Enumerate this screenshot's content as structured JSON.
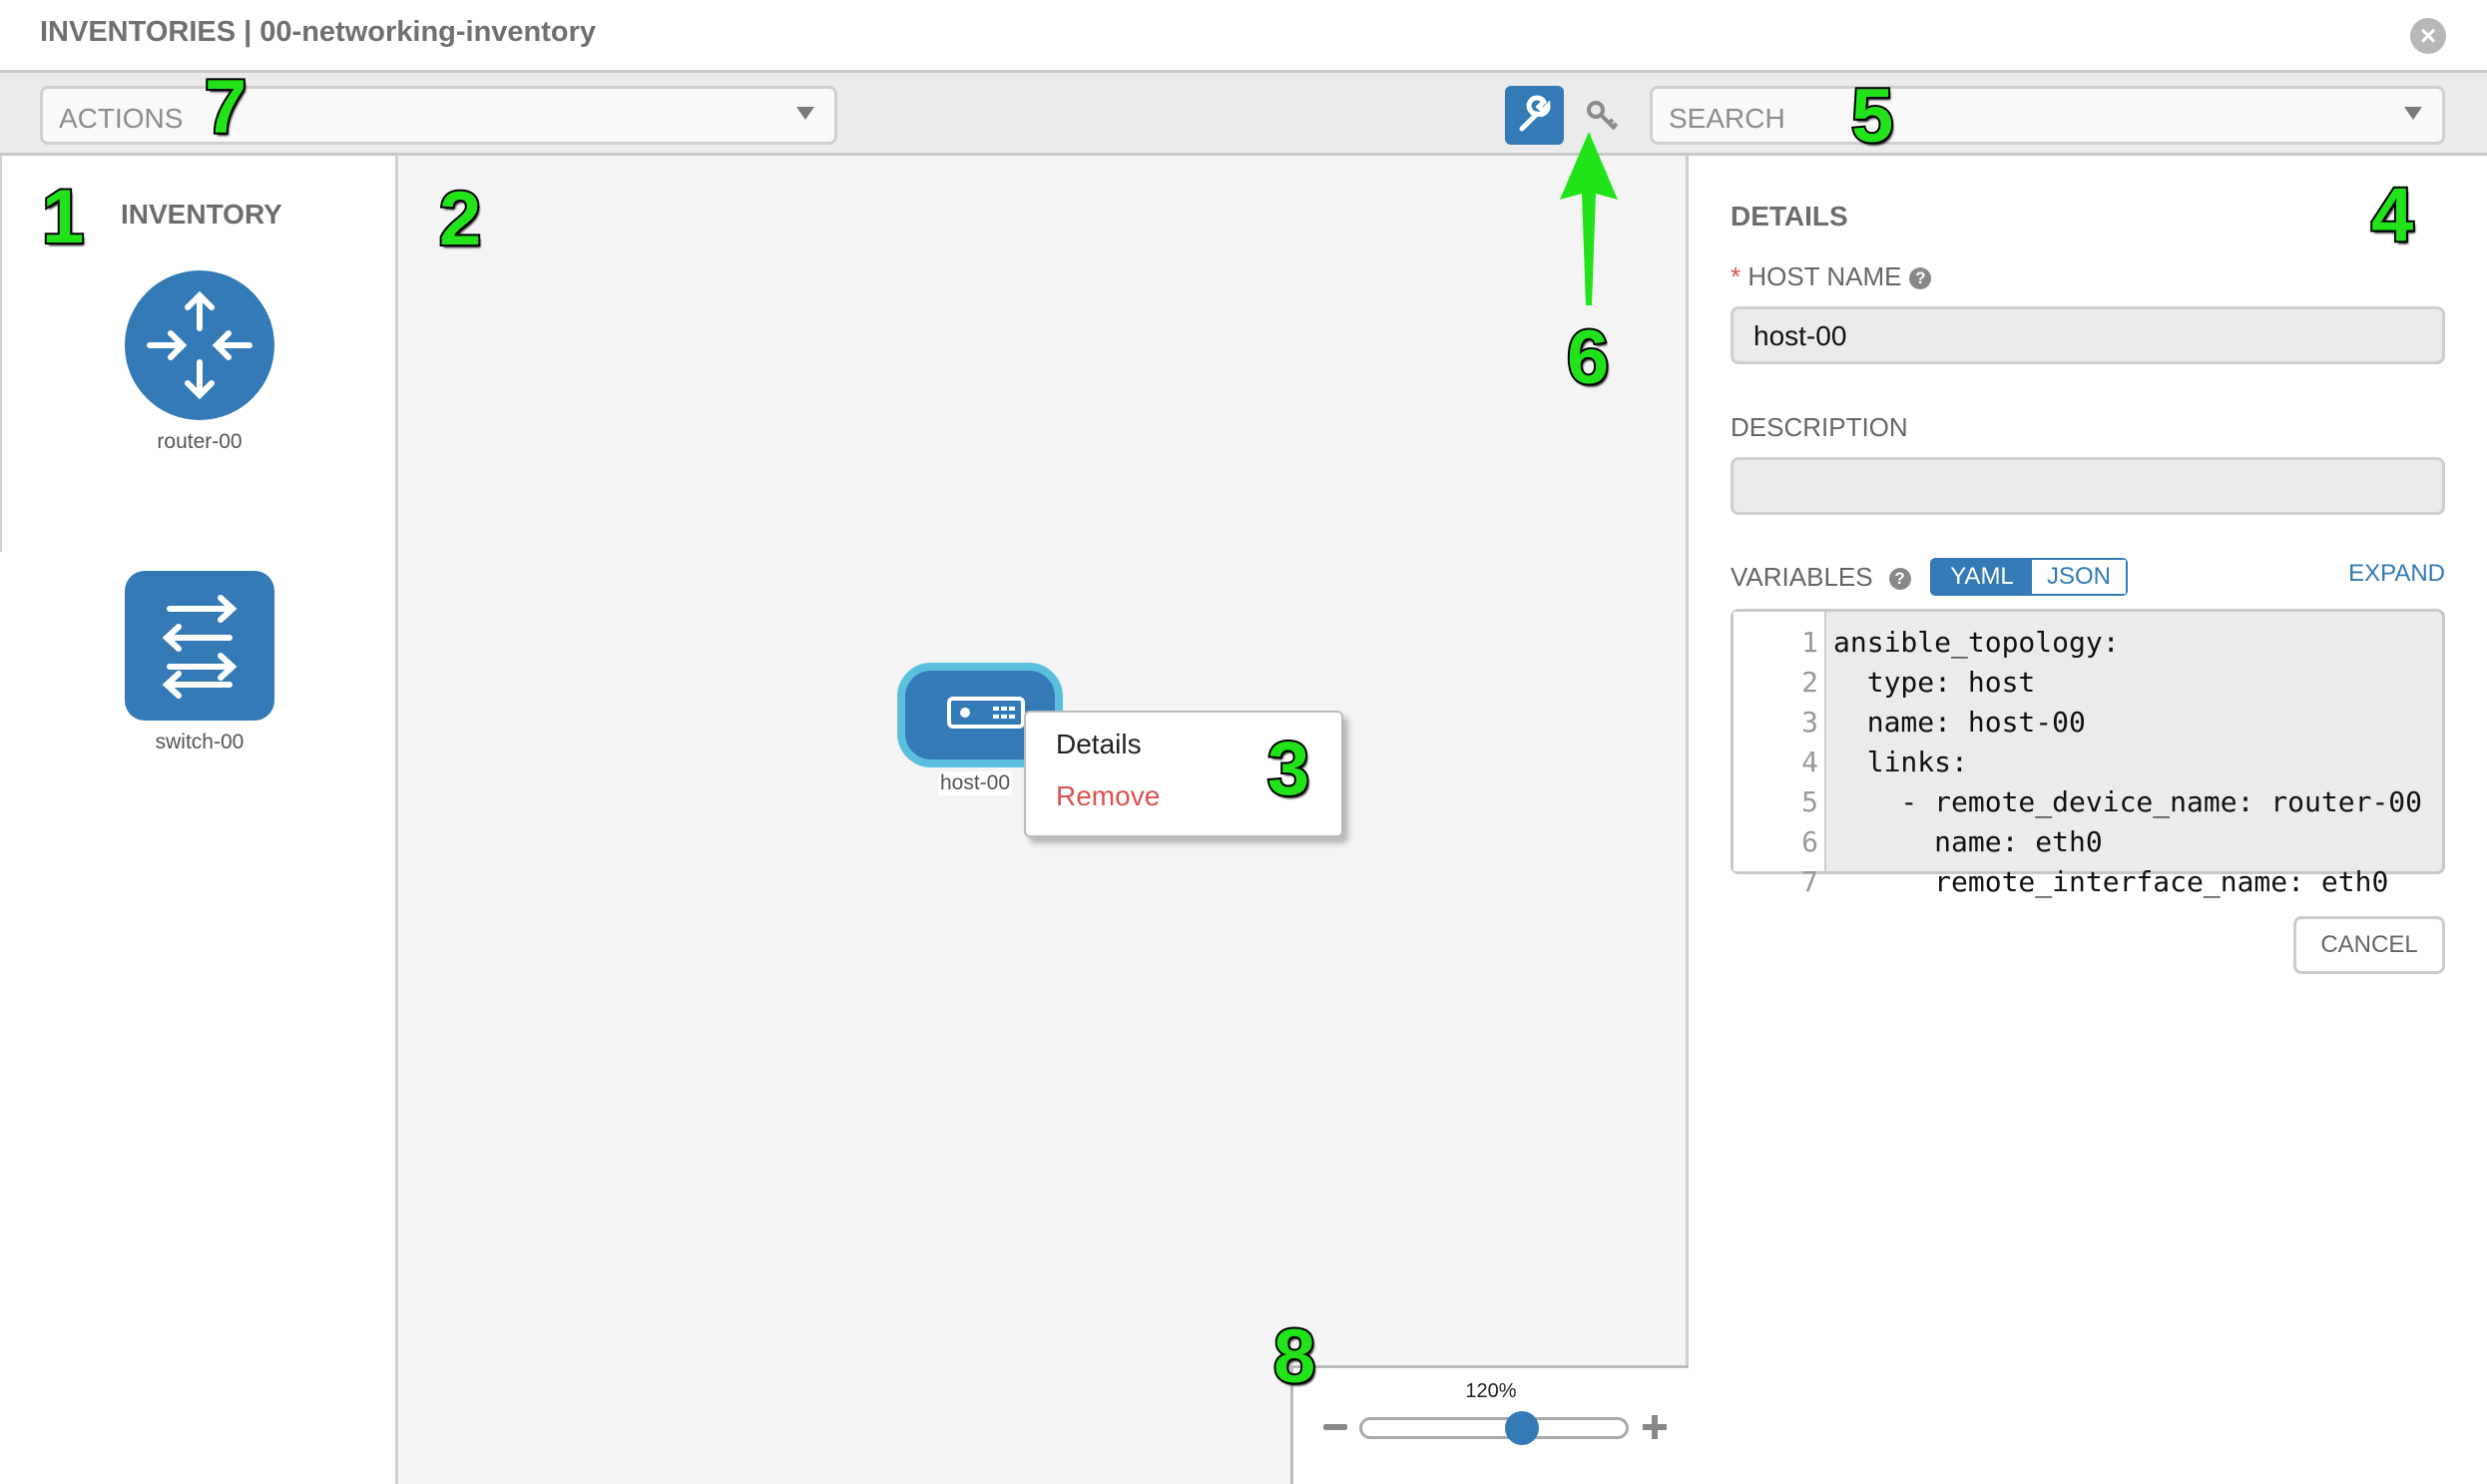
{
  "header": {
    "title": "INVENTORIES | 00-networking-inventory",
    "close_icon": "close-circle-icon"
  },
  "toolbar": {
    "actions_label": "ACTIONS",
    "search_placeholder": "SEARCH",
    "wrench_icon": "wrench-icon",
    "key_icon": "key-icon"
  },
  "inventory": {
    "title": "INVENTORY",
    "items": [
      {
        "label": "router-00",
        "icon": "router-icon"
      },
      {
        "label": "switch-00",
        "icon": "switch-icon"
      }
    ]
  },
  "canvas": {
    "host": {
      "label": "host-00",
      "icon": "host-icon"
    },
    "context_menu": {
      "details": "Details",
      "remove": "Remove"
    },
    "zoom": {
      "level": "120%",
      "value_percent": 120
    }
  },
  "details": {
    "title": "DETAILS",
    "host_name_label": "HOST NAME",
    "required_mark": "*",
    "host_name_value": "host-00",
    "description_label": "DESCRIPTION",
    "description_value": "",
    "variables_label": "VARIABLES",
    "yaml": "YAML",
    "json": "JSON",
    "expand": "EXPAND",
    "code_lines": [
      {
        "n": "1",
        "text": "ansible_topology:"
      },
      {
        "n": "2",
        "text": "  type: host"
      },
      {
        "n": "3",
        "text": "  name: host-00"
      },
      {
        "n": "4",
        "text": "  links:"
      },
      {
        "n": "5",
        "text": "    - remote_device_name: router-00"
      },
      {
        "n": "6",
        "text": "      name: eth0"
      },
      {
        "n": "7",
        "text": "      remote_interface_name: eth0"
      }
    ],
    "cancel": "CANCEL"
  },
  "annotations": [
    "1",
    "2",
    "3",
    "4",
    "5",
    "6",
    "7",
    "8"
  ],
  "colors": {
    "accent": "#337ab7",
    "host_border": "#5bc0de",
    "remove": "#d9534f",
    "annotation": "#22e31a"
  }
}
